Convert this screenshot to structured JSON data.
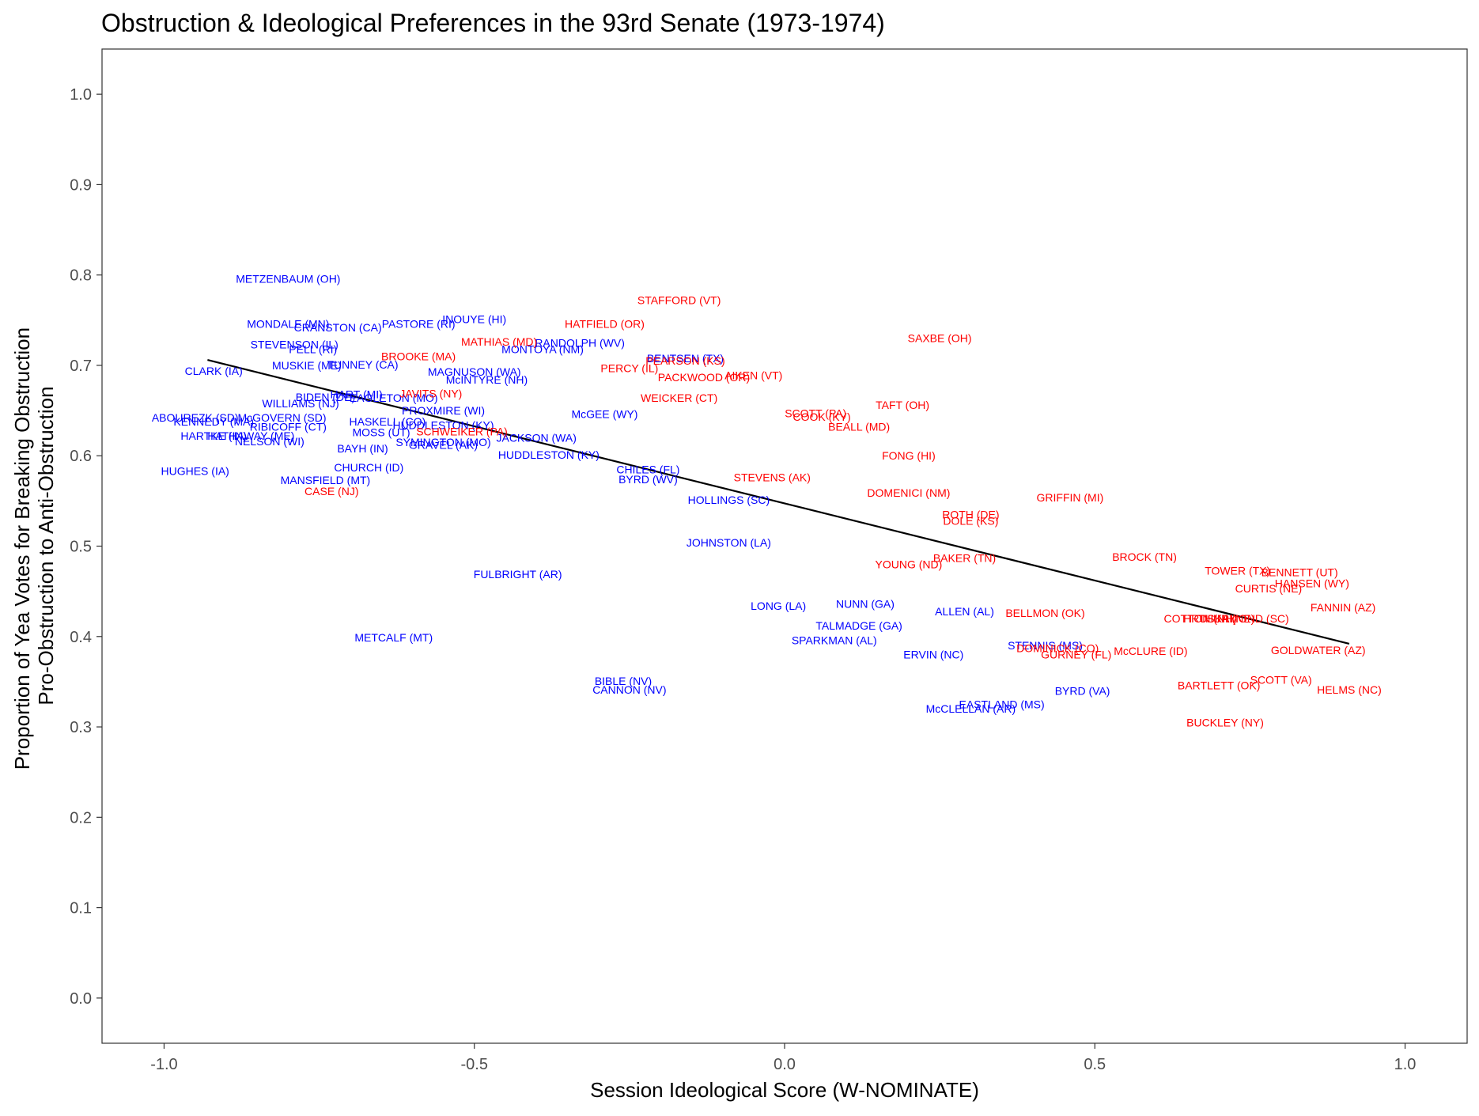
{
  "chart_data": {
    "type": "scatter",
    "title": "Obstruction & Ideological Preferences in the 93rd Senate (1973-1974)",
    "xlabel": "Session Ideological Score (W-NOMINATE)",
    "ylabel_lines": [
      "Proportion of Yea Votes for Breaking Obstruction",
      "Pro-Obstruction to Anti-Obstruction"
    ],
    "xlim": [
      -1.1,
      1.1
    ],
    "ylim": [
      -0.05,
      1.05
    ],
    "x_ticks": [
      -1.0,
      -0.5,
      0.0,
      0.5,
      1.0
    ],
    "x_tick_labels": [
      "-1.0",
      "-0.5",
      "0.0",
      "0.5",
      "1.0"
    ],
    "y_ticks": [
      0.0,
      0.1,
      0.2,
      0.3,
      0.4,
      0.5,
      0.6,
      0.7,
      0.8,
      0.9,
      1.0
    ],
    "y_tick_labels": [
      "0.0",
      "0.1",
      "0.2",
      "0.3",
      "0.4",
      "0.5",
      "0.6",
      "0.7",
      "0.8",
      "0.9",
      "1.0"
    ],
    "grid": false,
    "party_colors": {
      "D": "#0000ff",
      "R": "#ff0000"
    },
    "fit_line": {
      "x": [
        -0.93,
        0.91
      ],
      "y": [
        0.706,
        0.392
      ],
      "color": "#000000"
    },
    "points": [
      {
        "label": "METZENBAUM (OH)",
        "party": "D",
        "x": -0.8,
        "y": 0.796
      },
      {
        "label": "MONDALE (MN)",
        "party": "D",
        "x": -0.8,
        "y": 0.746
      },
      {
        "label": "CRANSTON (CA)",
        "party": "D",
        "x": -0.72,
        "y": 0.742
      },
      {
        "label": "PASTORE (RI)",
        "party": "D",
        "x": -0.59,
        "y": 0.746
      },
      {
        "label": "INOUYE (HI)",
        "party": "D",
        "x": -0.5,
        "y": 0.751
      },
      {
        "label": "STEVENSON (IL)",
        "party": "D",
        "x": -0.79,
        "y": 0.723
      },
      {
        "label": "PELL (RI)",
        "party": "D",
        "x": -0.76,
        "y": 0.718
      },
      {
        "label": "MUSKIE (ME)",
        "party": "D",
        "x": -0.77,
        "y": 0.7
      },
      {
        "label": "TUNNEY (CA)",
        "party": "D",
        "x": -0.68,
        "y": 0.701
      },
      {
        "label": "CLARK (IA)",
        "party": "D",
        "x": -0.92,
        "y": 0.694
      },
      {
        "label": "MAGNUSON (WA)",
        "party": "D",
        "x": -0.5,
        "y": 0.693
      },
      {
        "label": "McINTYRE (NH)",
        "party": "D",
        "x": -0.48,
        "y": 0.684
      },
      {
        "label": "MONTOYA (NM)",
        "party": "D",
        "x": -0.39,
        "y": 0.718
      },
      {
        "label": "RANDOLPH (WV)",
        "party": "D",
        "x": -0.33,
        "y": 0.725
      },
      {
        "label": "BENTSEN (TX)",
        "party": "D",
        "x": -0.16,
        "y": 0.708
      },
      {
        "label": "WILLIAMS (NJ)",
        "party": "D",
        "x": -0.78,
        "y": 0.658
      },
      {
        "label": "BIDEN (DE)",
        "party": "D",
        "x": -0.74,
        "y": 0.665
      },
      {
        "label": "HART (MI)",
        "party": "D",
        "x": -0.69,
        "y": 0.668
      },
      {
        "label": "EAGLETON (MO)",
        "party": "D",
        "x": -0.63,
        "y": 0.664
      },
      {
        "label": "PROXMIRE (WI)",
        "party": "D",
        "x": -0.55,
        "y": 0.65
      },
      {
        "label": "McGEE (WY)",
        "party": "D",
        "x": -0.29,
        "y": 0.646
      },
      {
        "label": "ABOUREZK (SD)",
        "party": "D",
        "x": -0.95,
        "y": 0.642
      },
      {
        "label": "McGOVERN (SD)",
        "party": "D",
        "x": -0.81,
        "y": 0.642
      },
      {
        "label": "KENNEDY (MA)",
        "party": "D",
        "x": -0.92,
        "y": 0.638
      },
      {
        "label": "RIBICOFF (CT)",
        "party": "D",
        "x": -0.8,
        "y": 0.632
      },
      {
        "label": "HASKELL (CO)",
        "party": "D",
        "x": -0.64,
        "y": 0.638
      },
      {
        "label": "HUDDLESTON (KY)",
        "party": "D",
        "x": -0.55,
        "y": 0.634
      },
      {
        "label": "MOSS (UT)",
        "party": "D",
        "x": -0.65,
        "y": 0.626
      },
      {
        "label": "HARTKE (IN)",
        "party": "D",
        "x": -0.92,
        "y": 0.622
      },
      {
        "label": "HATHAWAY (ME)",
        "party": "D",
        "x": -0.86,
        "y": 0.622
      },
      {
        "label": "NELSON (WI)",
        "party": "D",
        "x": -0.83,
        "y": 0.616
      },
      {
        "label": "SYMINGTON (MO)",
        "party": "D",
        "x": -0.55,
        "y": 0.615
      },
      {
        "label": "GRAVEL (AK)",
        "party": "D",
        "x": -0.55,
        "y": 0.612
      },
      {
        "label": "JACKSON (WA)",
        "party": "D",
        "x": -0.4,
        "y": 0.62
      },
      {
        "label": "BAYH (IN)",
        "party": "D",
        "x": -0.68,
        "y": 0.608
      },
      {
        "label": "HUDDLESTON (KY)",
        "party": "D",
        "x": -0.38,
        "y": 0.601
      },
      {
        "label": "HUGHES (IA)",
        "party": "D",
        "x": -0.95,
        "y": 0.583
      },
      {
        "label": "CHURCH (ID)",
        "party": "D",
        "x": -0.67,
        "y": 0.587
      },
      {
        "label": "MANSFIELD (MT)",
        "party": "D",
        "x": -0.74,
        "y": 0.573
      },
      {
        "label": "CHILES (FL)",
        "party": "D",
        "x": -0.22,
        "y": 0.585
      },
      {
        "label": "BYRD (WV)",
        "party": "D",
        "x": -0.22,
        "y": 0.574
      },
      {
        "label": "HOLLINGS (SC)",
        "party": "D",
        "x": -0.09,
        "y": 0.551
      },
      {
        "label": "JOHNSTON (LA)",
        "party": "D",
        "x": -0.09,
        "y": 0.504
      },
      {
        "label": "FULBRIGHT (AR)",
        "party": "D",
        "x": -0.43,
        "y": 0.469
      },
      {
        "label": "LONG (LA)",
        "party": "D",
        "x": -0.01,
        "y": 0.434
      },
      {
        "label": "NUNN (GA)",
        "party": "D",
        "x": 0.13,
        "y": 0.436
      },
      {
        "label": "TALMADGE (GA)",
        "party": "D",
        "x": 0.12,
        "y": 0.412
      },
      {
        "label": "SPARKMAN (AL)",
        "party": "D",
        "x": 0.08,
        "y": 0.396
      },
      {
        "label": "ALLEN (AL)",
        "party": "D",
        "x": 0.29,
        "y": 0.428
      },
      {
        "label": "METCALF (MT)",
        "party": "D",
        "x": -0.63,
        "y": 0.399
      },
      {
        "label": "ERVIN (NC)",
        "party": "D",
        "x": 0.24,
        "y": 0.38
      },
      {
        "label": "STENNIS (MS)",
        "party": "D",
        "x": 0.42,
        "y": 0.39
      },
      {
        "label": "BIBLE (NV)",
        "party": "D",
        "x": -0.26,
        "y": 0.351
      },
      {
        "label": "CANNON (NV)",
        "party": "D",
        "x": -0.25,
        "y": 0.341
      },
      {
        "label": "BYRD (VA)",
        "party": "D",
        "x": 0.48,
        "y": 0.34
      },
      {
        "label": "EASTLAND (MS)",
        "party": "D",
        "x": 0.35,
        "y": 0.325
      },
      {
        "label": "McCLELLAN (AR)",
        "party": "D",
        "x": 0.3,
        "y": 0.32
      },
      {
        "label": "STAFFORD (VT)",
        "party": "R",
        "x": -0.17,
        "y": 0.772
      },
      {
        "label": "HATFIELD (OR)",
        "party": "R",
        "x": -0.29,
        "y": 0.746
      },
      {
        "label": "MATHIAS (MD)",
        "party": "R",
        "x": -0.46,
        "y": 0.726
      },
      {
        "label": "BROOKE (MA)",
        "party": "R",
        "x": -0.59,
        "y": 0.71
      },
      {
        "label": "JAVITS (NY)",
        "party": "R",
        "x": -0.57,
        "y": 0.669
      },
      {
        "label": "PERCY (IL)",
        "party": "R",
        "x": -0.25,
        "y": 0.697
      },
      {
        "label": "PEARSON (KS)",
        "party": "R",
        "x": -0.16,
        "y": 0.705
      },
      {
        "label": "PACKWOOD (OR)",
        "party": "R",
        "x": -0.13,
        "y": 0.687
      },
      {
        "label": "AIKEN (VT)",
        "party": "R",
        "x": -0.05,
        "y": 0.689
      },
      {
        "label": "WEICKER (CT)",
        "party": "R",
        "x": -0.17,
        "y": 0.664
      },
      {
        "label": "SAXBE (OH)",
        "party": "R",
        "x": 0.25,
        "y": 0.73
      },
      {
        "label": "SCHWEIKER (PA)",
        "party": "R",
        "x": -0.52,
        "y": 0.627
      },
      {
        "label": "SCOTT (PA)",
        "party": "R",
        "x": 0.05,
        "y": 0.647
      },
      {
        "label": "COOK (KY)",
        "party": "R",
        "x": 0.06,
        "y": 0.643
      },
      {
        "label": "BEALL (MD)",
        "party": "R",
        "x": 0.12,
        "y": 0.632
      },
      {
        "label": "TAFT (OH)",
        "party": "R",
        "x": 0.19,
        "y": 0.656
      },
      {
        "label": "FONG (HI)",
        "party": "R",
        "x": 0.2,
        "y": 0.6
      },
      {
        "label": "STEVENS (AK)",
        "party": "R",
        "x": -0.02,
        "y": 0.576
      },
      {
        "label": "DOMENICI (NM)",
        "party": "R",
        "x": 0.2,
        "y": 0.559
      },
      {
        "label": "CASE (NJ)",
        "party": "R",
        "x": -0.73,
        "y": 0.561
      },
      {
        "label": "GRIFFIN (MI)",
        "party": "R",
        "x": 0.46,
        "y": 0.554
      },
      {
        "label": "ROTH (DE)",
        "party": "R",
        "x": 0.3,
        "y": 0.535
      },
      {
        "label": "DOLE (KS)",
        "party": "R",
        "x": 0.3,
        "y": 0.528
      },
      {
        "label": "YOUNG (ND)",
        "party": "R",
        "x": 0.2,
        "y": 0.48
      },
      {
        "label": "BAKER (TN)",
        "party": "R",
        "x": 0.29,
        "y": 0.487
      },
      {
        "label": "BROCK (TN)",
        "party": "R",
        "x": 0.58,
        "y": 0.488
      },
      {
        "label": "TOWER (TX)",
        "party": "R",
        "x": 0.73,
        "y": 0.473
      },
      {
        "label": "BENNETT (UT)",
        "party": "R",
        "x": 0.83,
        "y": 0.471
      },
      {
        "label": "HANSEN (WY)",
        "party": "R",
        "x": 0.85,
        "y": 0.459
      },
      {
        "label": "CURTIS (NE)",
        "party": "R",
        "x": 0.78,
        "y": 0.453
      },
      {
        "label": "FANNIN (AZ)",
        "party": "R",
        "x": 0.9,
        "y": 0.432
      },
      {
        "label": "BELLMON (OK)",
        "party": "R",
        "x": 0.42,
        "y": 0.426
      },
      {
        "label": "COTTON (NH)",
        "party": "R",
        "x": 0.67,
        "y": 0.42
      },
      {
        "label": "THURMOND (SC)",
        "party": "R",
        "x": 0.74,
        "y": 0.42
      },
      {
        "label": "HRUSKA (NE)",
        "party": "R",
        "x": 0.7,
        "y": 0.42
      },
      {
        "label": "DOMINICK (CO)",
        "party": "R",
        "x": 0.44,
        "y": 0.387
      },
      {
        "label": "GURNEY (FL)",
        "party": "R",
        "x": 0.47,
        "y": 0.38
      },
      {
        "label": "McCLURE (ID)",
        "party": "R",
        "x": 0.59,
        "y": 0.384
      },
      {
        "label": "GOLDWATER (AZ)",
        "party": "R",
        "x": 0.86,
        "y": 0.385
      },
      {
        "label": "SCOTT (VA)",
        "party": "R",
        "x": 0.8,
        "y": 0.352
      },
      {
        "label": "BARTLETT (OK)",
        "party": "R",
        "x": 0.7,
        "y": 0.346
      },
      {
        "label": "HELMS (NC)",
        "party": "R",
        "x": 0.91,
        "y": 0.341
      },
      {
        "label": "BUCKLEY (NY)",
        "party": "R",
        "x": 0.71,
        "y": 0.305
      }
    ]
  }
}
